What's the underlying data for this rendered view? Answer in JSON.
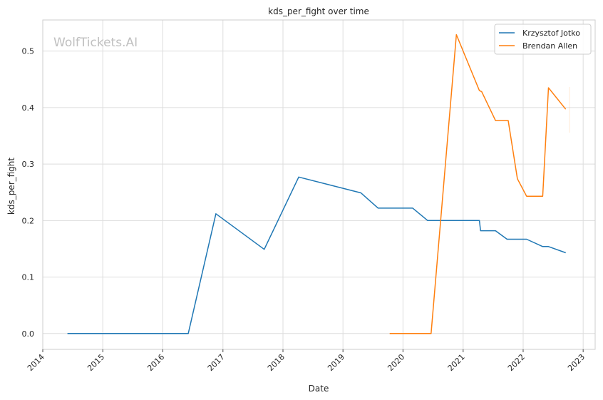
{
  "chart_data": {
    "type": "line",
    "title": "kds_per_fight over time",
    "xlabel": "Date",
    "ylabel": "kds_per_fight",
    "watermark": "WolfTickets.AI",
    "xlim": [
      "2014-01-01",
      "2023-03-15"
    ],
    "ylim": [
      -0.028,
      0.555
    ],
    "x_ticks": [
      "2014",
      "2015",
      "2016",
      "2017",
      "2018",
      "2019",
      "2020",
      "2021",
      "2022",
      "2023"
    ],
    "y_ticks": [
      "0.0",
      "0.1",
      "0.2",
      "0.3",
      "0.4",
      "0.5"
    ],
    "grid": true,
    "legend_position": "top-right",
    "series": [
      {
        "name": "Krzysztof Jotko",
        "color": "#1f77b4",
        "points": [
          [
            "2014-05-31",
            0.0
          ],
          [
            "2016-06-04",
            0.0
          ],
          [
            "2016-11-19",
            0.212
          ],
          [
            "2017-09-09",
            0.149
          ],
          [
            "2018-04-07",
            0.277
          ],
          [
            "2019-04-20",
            0.249
          ],
          [
            "2019-08-03",
            0.222
          ],
          [
            "2020-02-29",
            0.222
          ],
          [
            "2020-05-30",
            0.2
          ],
          [
            "2021-04-10",
            0.2
          ],
          [
            "2021-04-17",
            0.182
          ],
          [
            "2021-07-17",
            0.182
          ],
          [
            "2021-09-25",
            0.167
          ],
          [
            "2022-01-22",
            0.167
          ],
          [
            "2022-04-30",
            0.154
          ],
          [
            "2022-06-04",
            0.154
          ],
          [
            "2022-09-17",
            0.143
          ]
        ]
      },
      {
        "name": "Brendan Allen",
        "color": "#ff7f0e",
        "points": [
          [
            "2019-10-12",
            0.0
          ],
          [
            "2020-06-20",
            0.0
          ],
          [
            "2020-11-21",
            0.529
          ],
          [
            "2021-04-10",
            0.43
          ],
          [
            "2021-04-24",
            0.428
          ],
          [
            "2021-07-17",
            0.377
          ],
          [
            "2021-10-02",
            0.377
          ],
          [
            "2021-11-27",
            0.274
          ],
          [
            "2022-01-22",
            0.243
          ],
          [
            "2022-04-30",
            0.243
          ],
          [
            "2022-06-04",
            0.435
          ],
          [
            "2022-09-17",
            0.397
          ]
        ]
      }
    ]
  }
}
